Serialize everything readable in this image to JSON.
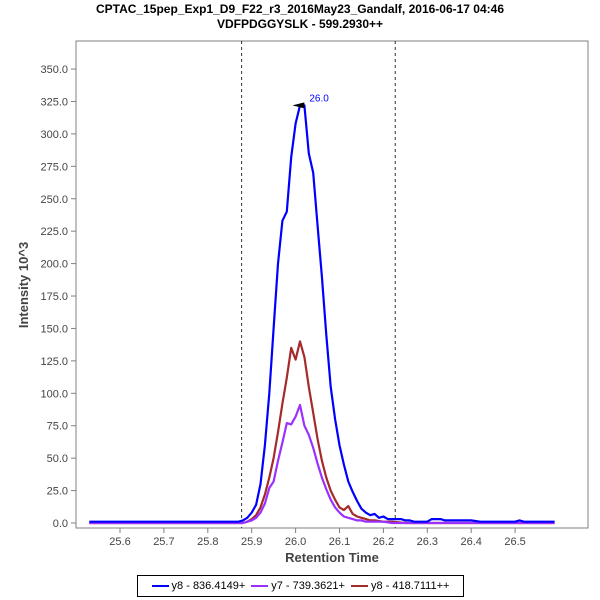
{
  "header": {
    "title": "CPTAC_15pep_Exp1_D9_F22_r3_2016May23_Gandalf, 2016-06-17 04:46",
    "subtitle": "VDFPDGGYSLK - 599.2930++"
  },
  "axes": {
    "xlabel": "Retention Time",
    "ylabel": "Intensity 10^3",
    "xticks": [
      "25.6",
      "25.7",
      "25.8",
      "25.9",
      "26.0",
      "26.1",
      "26.2",
      "26.3",
      "26.4",
      "26.5"
    ],
    "yticks": [
      "0.0",
      "25.0",
      "50.0",
      "75.0",
      "100.0",
      "125.0",
      "150.0",
      "175.0",
      "200.0",
      "225.0",
      "250.0",
      "275.0",
      "300.0",
      "325.0",
      "350.0"
    ]
  },
  "annotation": {
    "peak_label": "26.0"
  },
  "legend": {
    "items": [
      {
        "label": "y8 - 836.4149+",
        "color": "#0000ff"
      },
      {
        "label": "y7 - 739.3621+",
        "color": "#9b30ff"
      },
      {
        "label": "y8 - 418.7111++",
        "color": "#a52a2a"
      }
    ]
  },
  "chart_data": {
    "type": "line",
    "title": "CPTAC_15pep_Exp1_D9_F22_r3_2016May23_Gandalf, 2016-06-17 04:46",
    "subtitle": "VDFPDGGYSLK - 599.2930++",
    "xlabel": "Retention Time",
    "ylabel": "Intensity 10^3",
    "xlim": [
      25.53,
      26.59
    ],
    "ylim": [
      0,
      370
    ],
    "grid": false,
    "legend_position": "bottom",
    "integration_bounds": [
      25.877,
      26.227
    ],
    "annotations": [
      {
        "x": 26.02,
        "y": 322,
        "text": "26.0"
      }
    ],
    "series": [
      {
        "name": "y8 - 836.4149+",
        "color": "#0000ff",
        "x": [
          25.53,
          25.87,
          25.88,
          25.89,
          25.9,
          25.91,
          25.92,
          25.93,
          25.94,
          25.95,
          25.96,
          25.97,
          25.98,
          25.99,
          26.0,
          26.01,
          26.02,
          26.03,
          26.04,
          26.05,
          26.06,
          26.07,
          26.08,
          26.09,
          26.1,
          26.11,
          26.12,
          26.13,
          26.14,
          26.15,
          26.16,
          26.17,
          26.18,
          26.19,
          26.2,
          26.21,
          26.22,
          26.23,
          26.24,
          26.25,
          26.26,
          26.27,
          26.28,
          26.29,
          26.3,
          26.31,
          26.32,
          26.33,
          26.34,
          26.36,
          26.38,
          26.4,
          26.42,
          26.44,
          26.46,
          26.48,
          26.5,
          26.51,
          26.52,
          26.54,
          26.56,
          26.59
        ],
        "values": [
          1,
          1,
          2,
          4,
          8,
          14,
          30,
          60,
          100,
          150,
          200,
          233,
          240,
          282,
          308,
          322,
          322,
          285,
          270,
          230,
          190,
          145,
          105,
          80,
          60,
          45,
          32,
          24,
          17,
          11,
          8,
          6,
          7,
          4,
          5,
          3,
          3,
          3,
          3,
          2,
          2,
          1,
          1,
          1,
          1,
          3,
          3,
          3,
          2,
          2,
          2,
          2,
          1,
          1,
          1,
          1,
          1,
          2,
          1,
          1,
          1,
          1
        ]
      },
      {
        "name": "y7 - 739.3621+",
        "color": "#9b30ff",
        "x": [
          25.53,
          25.88,
          25.89,
          25.9,
          25.91,
          25.92,
          25.93,
          25.94,
          25.95,
          25.96,
          25.97,
          25.98,
          25.99,
          26.0,
          26.01,
          26.02,
          26.03,
          26.04,
          26.05,
          26.06,
          26.07,
          26.08,
          26.09,
          26.1,
          26.11,
          26.12,
          26.13,
          26.14,
          26.15,
          26.16,
          26.17,
          26.18,
          26.2,
          26.22,
          26.25,
          26.3,
          26.59
        ],
        "values": [
          0,
          0,
          1,
          2,
          4,
          8,
          15,
          27,
          32,
          48,
          62,
          77,
          76,
          82,
          91,
          75,
          68,
          58,
          46,
          35,
          26,
          18,
          12,
          8,
          5,
          4,
          3,
          2,
          2,
          1,
          1,
          1,
          1,
          0,
          0,
          0,
          0
        ]
      },
      {
        "name": "y8 - 418.7111++",
        "color": "#a52a2a",
        "x": [
          25.53,
          25.88,
          25.89,
          25.9,
          25.91,
          25.92,
          25.93,
          25.94,
          25.95,
          25.96,
          25.97,
          25.98,
          25.99,
          26.0,
          26.01,
          26.02,
          26.03,
          26.04,
          26.05,
          26.06,
          26.07,
          26.08,
          26.09,
          26.1,
          26.11,
          26.12,
          26.13,
          26.14,
          26.15,
          26.16,
          26.17,
          26.18,
          26.2,
          26.22,
          26.25,
          26.3,
          26.59
        ],
        "values": [
          0,
          0,
          1,
          3,
          6,
          12,
          22,
          35,
          50,
          70,
          92,
          112,
          135,
          126,
          140,
          128,
          105,
          85,
          65,
          48,
          35,
          25,
          18,
          12,
          10,
          13,
          7,
          5,
          4,
          3,
          2,
          2,
          1,
          1,
          0,
          0,
          0
        ]
      }
    ]
  }
}
